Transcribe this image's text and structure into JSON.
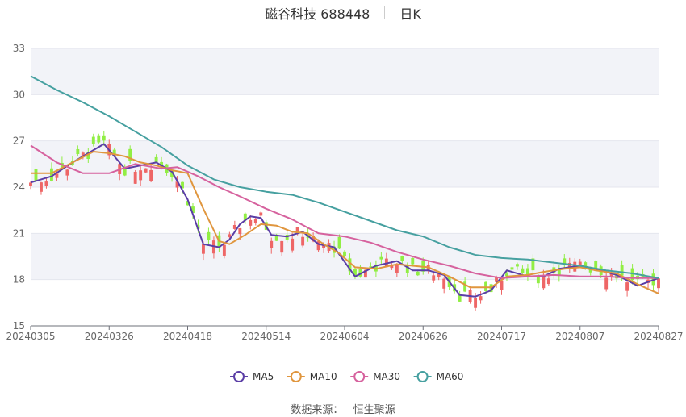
{
  "header": {
    "stock": "磁谷科技 688448",
    "period": "日K"
  },
  "source": {
    "label": "数据来源：",
    "name": "恒生聚源"
  },
  "chart_data": {
    "type": "candlestick",
    "y_ticks": [
      "15",
      "18",
      "21",
      "24",
      "27",
      "30",
      "33"
    ],
    "ylim": [
      15,
      33
    ],
    "x_ticks": [
      "20240305",
      "20240326",
      "20240418",
      "20240514",
      "20240604",
      "20240626",
      "20240717",
      "20240807",
      "20240827"
    ],
    "x_tick_index": [
      0,
      15,
      30,
      45,
      60,
      75,
      90,
      105,
      120
    ],
    "grid": true,
    "legend_position": "bottom",
    "colors": {
      "up": "#ee6666",
      "down": "#91ee44",
      "ma5": "#5b3ea6",
      "ma10": "#e0963e",
      "ma30": "#d6629e",
      "ma60": "#46a0a0",
      "band": "#f2f3f8"
    },
    "series": [
      {
        "name": "MA5",
        "color": "#5b3ea6",
        "x": [
          0,
          4,
          8,
          12,
          14,
          18,
          21,
          24,
          27,
          30,
          33,
          36,
          38,
          40,
          42,
          44,
          46,
          49,
          52,
          55,
          58,
          62,
          66,
          70,
          73,
          76,
          79,
          82,
          85,
          88,
          91,
          95,
          98,
          101,
          105,
          108,
          112,
          116,
          120
        ],
        "y": [
          24.3,
          24.7,
          25.6,
          26.4,
          26.8,
          25.2,
          25.4,
          25.6,
          25.0,
          23.2,
          20.3,
          20.1,
          20.6,
          21.6,
          22.1,
          22.0,
          20.9,
          20.8,
          21.1,
          20.3,
          20.1,
          18.2,
          18.9,
          19.2,
          18.6,
          18.6,
          18.3,
          17.0,
          16.9,
          17.3,
          18.6,
          18.2,
          18.2,
          18.7,
          18.9,
          18.7,
          18.3,
          17.6,
          18.1
        ]
      },
      {
        "name": "MA10",
        "color": "#e0963e",
        "x": [
          0,
          4,
          8,
          12,
          15,
          18,
          21,
          24,
          27,
          30,
          33,
          36,
          38,
          41,
          44,
          47,
          50,
          53,
          56,
          59,
          62,
          66,
          70,
          73,
          76,
          80,
          84,
          88,
          91,
          95,
          98,
          102,
          105,
          108,
          112,
          116,
          120
        ],
        "y": [
          24.9,
          24.9,
          25.6,
          26.3,
          26.2,
          26.0,
          25.6,
          25.4,
          25.1,
          24.9,
          22.6,
          20.5,
          20.3,
          20.9,
          21.6,
          21.5,
          21.1,
          21.0,
          20.3,
          19.7,
          18.8,
          18.7,
          19.0,
          18.9,
          18.8,
          18.2,
          17.5,
          17.5,
          18.2,
          18.3,
          18.5,
          18.7,
          18.8,
          18.6,
          18.4,
          17.7,
          17.1
        ]
      },
      {
        "name": "MA30",
        "color": "#d6629e",
        "x": [
          0,
          5,
          10,
          15,
          20,
          25,
          28,
          32,
          36,
          40,
          45,
          50,
          55,
          60,
          65,
          70,
          75,
          80,
          85,
          90,
          95,
          100,
          105,
          110,
          115,
          120
        ],
        "y": [
          26.7,
          25.6,
          24.9,
          24.9,
          25.5,
          25.2,
          25.3,
          24.7,
          24.0,
          23.4,
          22.6,
          21.9,
          21.0,
          20.8,
          20.4,
          19.8,
          19.3,
          18.9,
          18.4,
          18.1,
          18.2,
          18.3,
          18.2,
          18.2,
          18.1,
          18.1
        ]
      },
      {
        "name": "MA60",
        "color": "#46a0a0",
        "x": [
          0,
          5,
          10,
          15,
          20,
          25,
          30,
          35,
          40,
          45,
          50,
          55,
          60,
          65,
          70,
          75,
          80,
          85,
          90,
          95,
          100,
          105,
          110,
          115,
          120
        ],
        "y": [
          31.2,
          30.3,
          29.5,
          28.6,
          27.6,
          26.6,
          25.4,
          24.5,
          24.0,
          23.7,
          23.5,
          23.0,
          22.4,
          21.8,
          21.2,
          20.8,
          20.1,
          19.6,
          19.4,
          19.3,
          19.1,
          18.9,
          18.6,
          18.4,
          18.1
        ]
      }
    ]
  }
}
